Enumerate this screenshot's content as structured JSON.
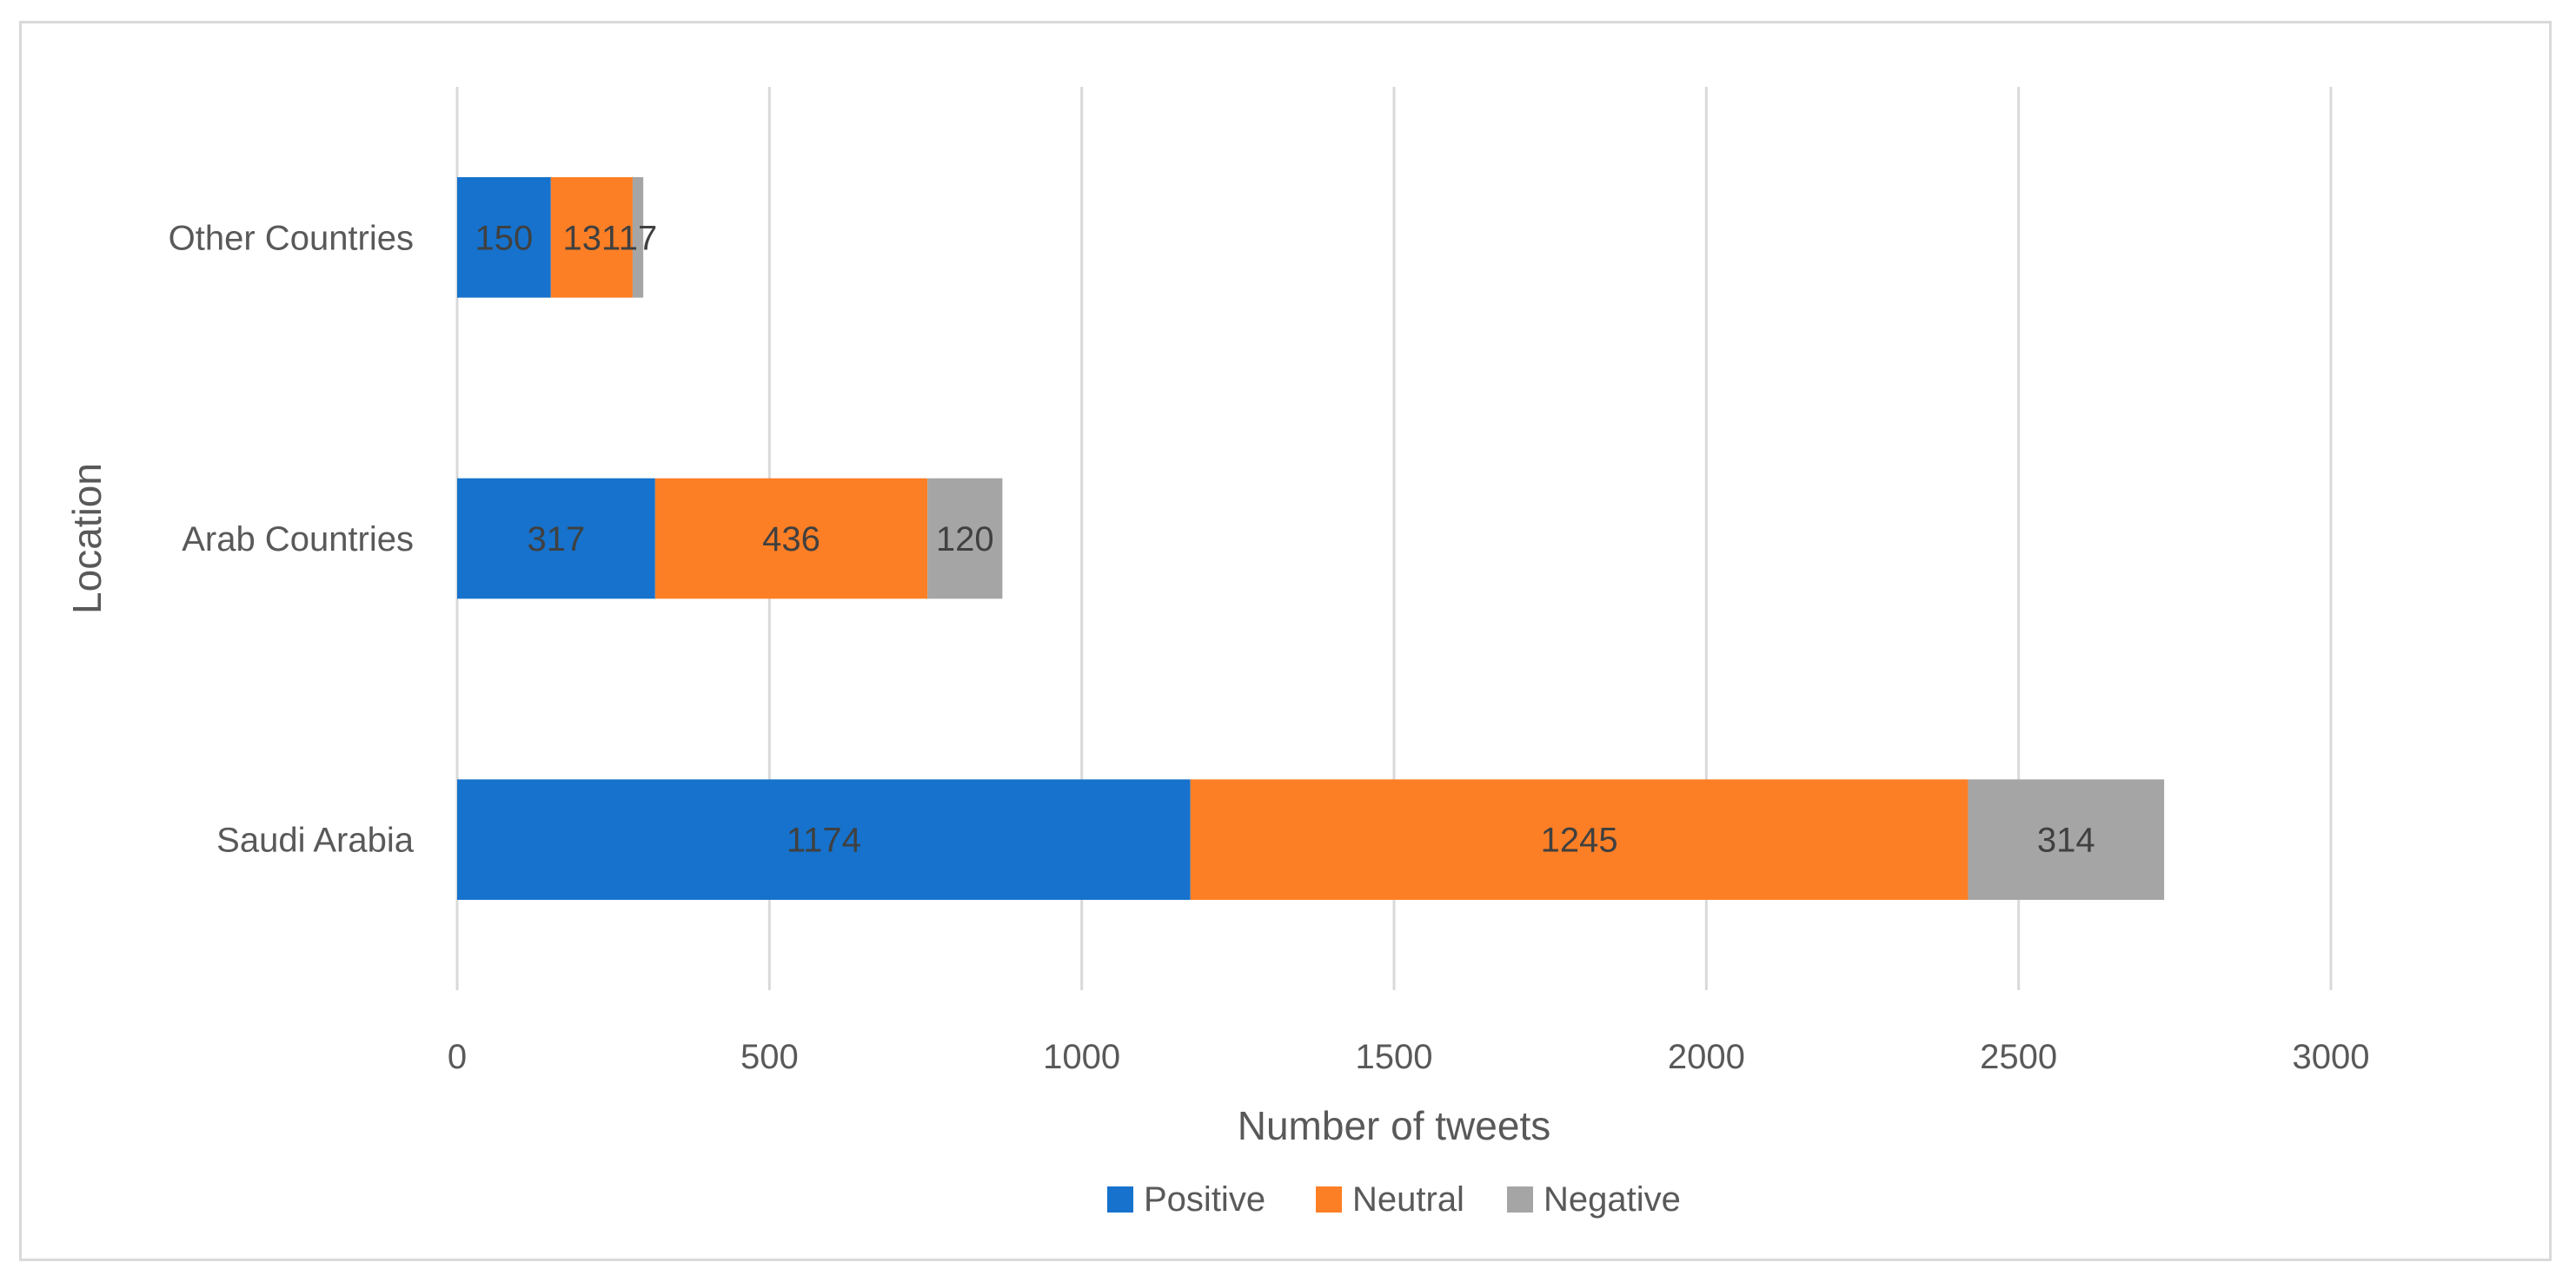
{
  "chart_data": {
    "type": "bar",
    "orientation": "horizontal",
    "stacked": true,
    "title": "",
    "xlabel": "Number of tweets",
    "ylabel": "Location",
    "xlim": [
      0,
      3000
    ],
    "xticks": [
      0,
      500,
      1000,
      1500,
      2000,
      2500,
      3000
    ],
    "grid": "vertical",
    "legend_position": "bottom",
    "categories": [
      "Other Countries",
      "Arab Countries",
      "Saudi Arabia"
    ],
    "series": [
      {
        "name": "Positive",
        "color": "#1672cc",
        "values": [
          150,
          317,
          1174
        ]
      },
      {
        "name": "Neutral",
        "color": "#fd7f25",
        "values": [
          131,
          436,
          1245
        ]
      },
      {
        "name": "Negative",
        "color": "#a5a5a5",
        "values": [
          17,
          120,
          314
        ]
      }
    ]
  }
}
